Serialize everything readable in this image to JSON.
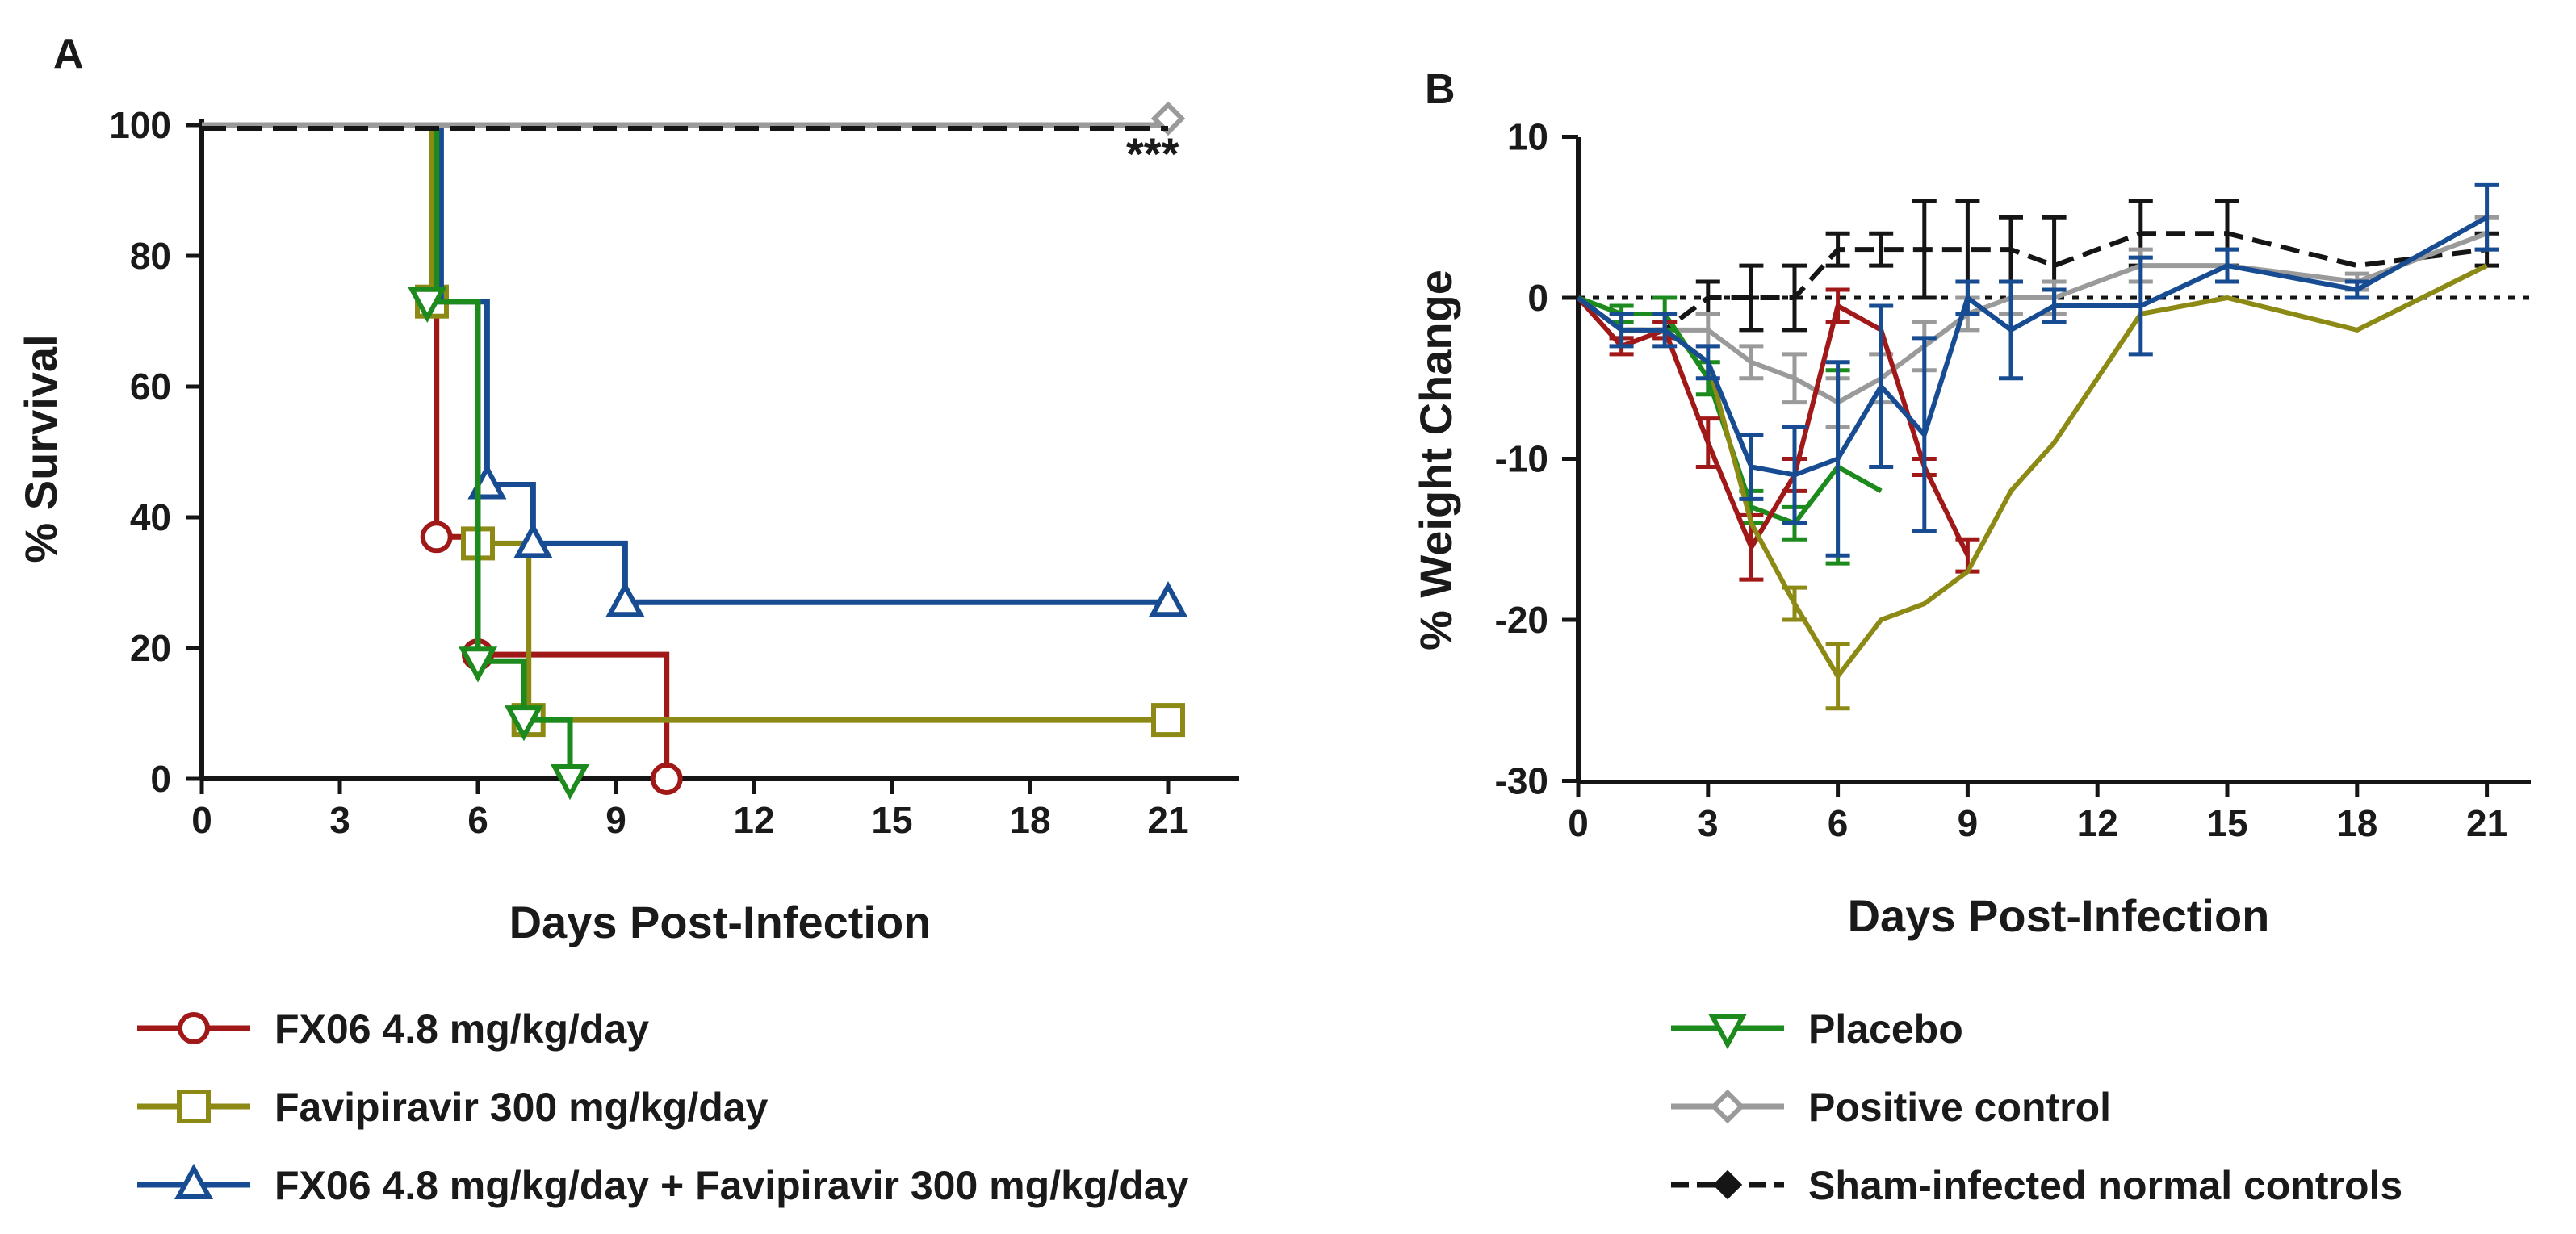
{
  "colors": {
    "fx06": "#a01818",
    "favipiravir": "#8c8a14",
    "combo": "#184c92",
    "placebo": "#1d8a1d",
    "positive": "#9a9a9a",
    "sham": "#151515",
    "axis": "#151515"
  },
  "legend": {
    "fx06": "FX06 4.8 mg/kg/day",
    "favipiravir": "Favipiravir 300 mg/kg/day",
    "combo": "FX06 4.8 mg/kg/day + Favipiravir 300 mg/kg/day",
    "placebo": "Placebo",
    "positive": "Positive control",
    "sham": "Sham-infected normal controls"
  },
  "chart_data": [
    {
      "panel": "A",
      "type": "line",
      "subtype": "kaplan-meier",
      "xlabel": "Days Post-Infection",
      "ylabel": "% Survival",
      "xlim": [
        0,
        21.5
      ],
      "ylim": [
        0,
        100
      ],
      "xticks": [
        "0",
        "3",
        "6",
        "9",
        "12",
        "15",
        "18",
        "21"
      ],
      "yticks": [
        "0",
        "20",
        "40",
        "60",
        "80",
        "100"
      ],
      "annotation": "***",
      "series": [
        {
          "key": "fx06",
          "name": "FX06 4.8 mg/kg/day",
          "marker": "circle",
          "steps": [
            [
              0,
              100
            ],
            [
              5.1,
              100
            ],
            [
              5.1,
              37
            ],
            [
              6,
              37
            ],
            [
              6,
              19
            ],
            [
              10.1,
              19
            ],
            [
              10.1,
              0
            ]
          ],
          "markers": [
            [
              5.1,
              37
            ],
            [
              6,
              19
            ],
            [
              10.1,
              0
            ]
          ]
        },
        {
          "key": "favipiravir",
          "name": "Favipiravir 300 mg/kg/day",
          "marker": "square",
          "steps": [
            [
              0,
              100
            ],
            [
              5,
              100
            ],
            [
              5,
              73
            ],
            [
              6,
              73
            ],
            [
              6,
              36
            ],
            [
              7.1,
              36
            ],
            [
              7.1,
              9
            ],
            [
              21,
              9
            ]
          ],
          "markers": [
            [
              5,
              73
            ],
            [
              6,
              36
            ],
            [
              7.1,
              9
            ],
            [
              21,
              9
            ]
          ]
        },
        {
          "key": "combo",
          "name": "FX06 4.8 mg/kg/day + Favipiravir 300 mg/kg/day",
          "marker": "triangle-up",
          "steps": [
            [
              0,
              100
            ],
            [
              5.2,
              100
            ],
            [
              5.2,
              73
            ],
            [
              6.2,
              73
            ],
            [
              6.2,
              45
            ],
            [
              7.2,
              45
            ],
            [
              7.2,
              36
            ],
            [
              9.2,
              36
            ],
            [
              9.2,
              27
            ],
            [
              21,
              27
            ]
          ],
          "markers": [
            [
              6.2,
              45
            ],
            [
              7.2,
              36
            ],
            [
              9.2,
              27
            ],
            [
              21,
              27
            ]
          ]
        },
        {
          "key": "placebo",
          "name": "Placebo",
          "marker": "triangle-down",
          "steps": [
            [
              0,
              100
            ],
            [
              5.1,
              100
            ],
            [
              5.1,
              73
            ],
            [
              6,
              73
            ],
            [
              6,
              18
            ],
            [
              7,
              18
            ],
            [
              7,
              9
            ],
            [
              8,
              9
            ],
            [
              8,
              0
            ]
          ],
          "markers": [
            [
              4.9,
              73
            ],
            [
              6,
              18
            ],
            [
              7,
              9
            ],
            [
              8,
              0
            ]
          ]
        },
        {
          "key": "positive",
          "name": "Positive control",
          "marker": "diamond",
          "steps": [
            [
              0,
              100
            ],
            [
              21,
              100
            ]
          ],
          "markers": [
            [
              21,
              101
            ]
          ]
        },
        {
          "key": "sham",
          "name": "Sham-infected normal controls",
          "marker": "filled-diamond",
          "dashed": true,
          "steps": [
            [
              0,
              99.5
            ],
            [
              21,
              99.5
            ]
          ],
          "markers": []
        }
      ]
    },
    {
      "panel": "B",
      "type": "line",
      "xlabel": "Days Post-Infection",
      "ylabel": "% Weight Change",
      "xlim": [
        0,
        21.5
      ],
      "ylim": [
        -30,
        10
      ],
      "xticks": [
        "0",
        "3",
        "6",
        "9",
        "12",
        "15",
        "18",
        "21"
      ],
      "yticks": [
        "-30",
        "-20",
        "-10",
        "0",
        "10"
      ],
      "series": [
        {
          "key": "sham",
          "name": "Sham-infected normal controls",
          "dashed": true,
          "x": [
            0,
            1,
            2,
            3,
            4,
            5,
            6,
            7,
            8,
            9,
            10,
            11,
            13,
            15,
            18,
            21
          ],
          "y": [
            0,
            -2,
            -2,
            0,
            0,
            0,
            3,
            3,
            3,
            3,
            3,
            2,
            4,
            4,
            2,
            3
          ],
          "err": [
            0,
            0,
            0,
            1,
            2,
            2,
            1,
            1,
            3,
            3,
            2,
            3,
            2,
            2,
            0,
            1
          ]
        },
        {
          "key": "positive",
          "name": "Positive control",
          "x": [
            0,
            1,
            2,
            3,
            4,
            5,
            6,
            7,
            8,
            9,
            10,
            11,
            13,
            15,
            18,
            21
          ],
          "y": [
            0,
            -2,
            -2,
            -2,
            -4,
            -5,
            -6.5,
            -5,
            -3,
            -1,
            0,
            0,
            2,
            2,
            1,
            4
          ],
          "err": [
            0,
            0.5,
            0.5,
            1,
            1,
            1.5,
            1.5,
            1.5,
            1.5,
            1,
            1,
            1,
            1,
            1,
            0.5,
            1
          ]
        },
        {
          "key": "placebo",
          "name": "Placebo",
          "x": [
            0,
            1,
            2,
            3,
            4,
            5,
            6,
            7
          ],
          "y": [
            0,
            -1,
            -1,
            -5,
            -13,
            -14,
            -10.5,
            -12
          ],
          "err": [
            0,
            0.5,
            1,
            1,
            1,
            1,
            6,
            0
          ]
        },
        {
          "key": "fx06",
          "name": "FX06 4.8 mg/kg/day",
          "x": [
            0,
            1,
            2,
            3,
            4,
            5,
            6,
            7,
            8,
            9
          ],
          "y": [
            0,
            -3,
            -2,
            -9,
            -15.5,
            -11,
            -0.5,
            -2,
            -10.5,
            -16
          ],
          "err": [
            0,
            0.5,
            0.5,
            1.5,
            2,
            1,
            1,
            0,
            0.5,
            1
          ]
        },
        {
          "key": "favipiravir",
          "name": "Favipiravir 300 mg/kg/day",
          "x": [
            0,
            1,
            2,
            3,
            4,
            5,
            6,
            7,
            8,
            9,
            10,
            11,
            13,
            15,
            18,
            21
          ],
          "y": [
            0,
            -2,
            -2,
            -4,
            -14,
            -19,
            -23.5,
            -20,
            -19,
            -17,
            -12,
            -9,
            -1,
            0,
            -2,
            2
          ],
          "err": [
            0,
            0,
            0,
            0,
            0,
            1,
            2,
            0,
            0,
            0,
            0,
            0,
            0,
            0,
            0,
            0
          ]
        },
        {
          "key": "combo",
          "name": "FX06 4.8 mg/kg/day + Favipiravir 300 mg/kg/day",
          "x": [
            0,
            1,
            2,
            3,
            4,
            5,
            6,
            7,
            8,
            9,
            10,
            11,
            13,
            15,
            18,
            21
          ],
          "y": [
            0,
            -2,
            -2,
            -4,
            -10.5,
            -11,
            -10,
            -5.5,
            -8.5,
            0,
            -2,
            -0.5,
            -0.5,
            2,
            0.5,
            5
          ],
          "err": [
            0,
            1,
            1,
            1,
            2,
            3,
            6,
            5,
            6,
            1,
            3,
            1,
            3,
            1,
            0.5,
            2
          ]
        }
      ]
    }
  ]
}
